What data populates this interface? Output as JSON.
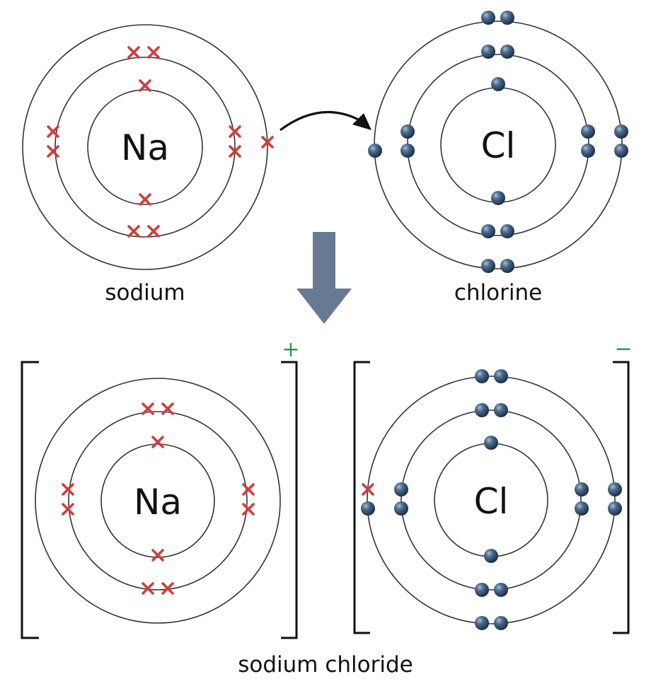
{
  "colors": {
    "cross": "#d33c3c",
    "dot": "#2f4a66",
    "shell": "#333333",
    "arrow_down": "#667b93",
    "charge": "#2e9a44"
  },
  "top": {
    "sodium": {
      "symbol": "Na",
      "caption": "sodium"
    },
    "chlorine": {
      "symbol": "Cl",
      "caption": "chlorine"
    }
  },
  "bottom": {
    "sodium_ion": {
      "symbol": "Na",
      "charge": "+"
    },
    "chloride_ion": {
      "symbol": "Cl",
      "charge": "−"
    },
    "caption": "sodium chloride"
  }
}
